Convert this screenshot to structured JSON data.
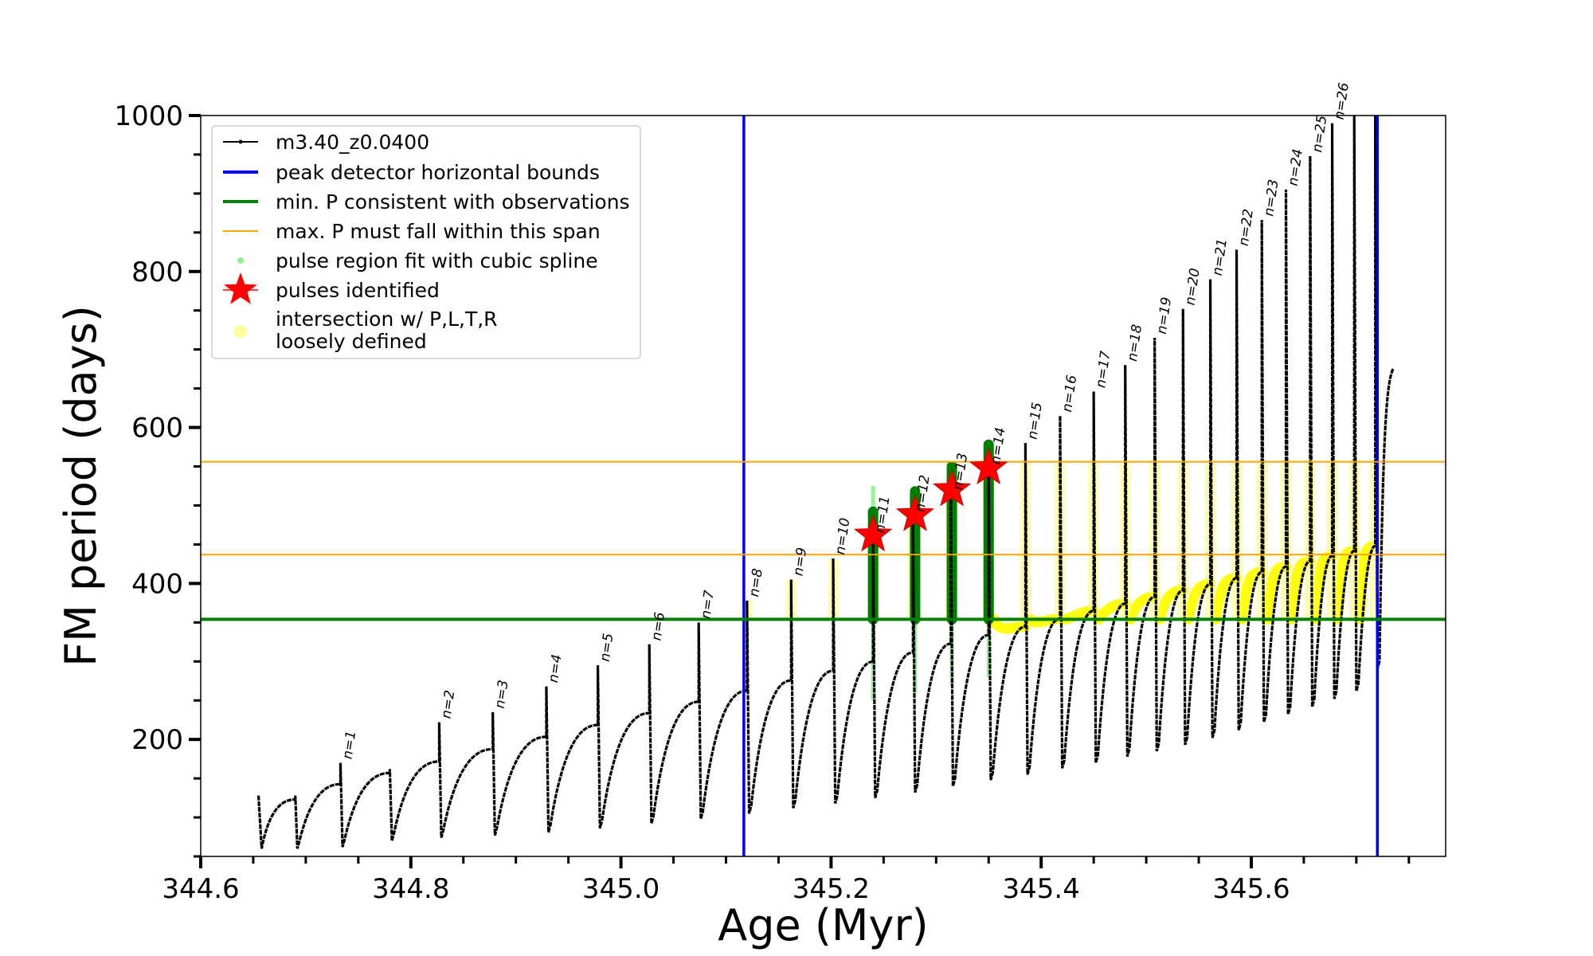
{
  "chart_data": {
    "type": "line",
    "xlabel": "Age (Myr)",
    "ylabel": "FM period (days)",
    "xlim": [
      344.6,
      345.785
    ],
    "ylim": [
      50,
      1000
    ],
    "xticks": [
      344.6,
      344.8,
      345.0,
      345.2,
      345.4,
      345.6
    ],
    "xtick_labels": [
      "344.6",
      "344.8",
      "345.0",
      "345.2",
      "345.4",
      "345.6"
    ],
    "yticks": [
      200,
      400,
      600,
      800,
      1000
    ],
    "ytick_labels": [
      "200",
      "400",
      "600",
      "800",
      "1000"
    ],
    "legend_position": "top-left",
    "legend": [
      {
        "label": "m3.40_z0.0400",
        "kind": "line-dot",
        "color": "#000000"
      },
      {
        "label": "peak detector horizontal bounds",
        "kind": "line",
        "color": "#0000ee"
      },
      {
        "label": "min. P consistent with observations",
        "kind": "line",
        "color": "#008000"
      },
      {
        "label": "max. P must fall within this span",
        "kind": "thin-line",
        "color": "#ffa500"
      },
      {
        "label": "pulse region fit with cubic spline",
        "kind": "dot",
        "color": "#90ee90"
      },
      {
        "label": "pulses identified",
        "kind": "star",
        "color": "#ff0000"
      },
      {
        "label": "intersection w/ P,L,T,R",
        "label2": "loosely defined",
        "kind": "bigdot",
        "color": "#ffff99"
      }
    ],
    "vertical_bounds": [
      345.117,
      345.72
    ],
    "min_period": 354,
    "max_period_span": [
      437,
      556
    ],
    "series": [
      {
        "name": "m3.40_z0.0400",
        "color": "#000000",
        "start_age": 344.655,
        "start_period": 128,
        "end_age": 345.735,
        "end_period": 675,
        "pulses": [
          {
            "label": "n=1",
            "age": 344.733,
            "peak": 170,
            "min": 62
          },
          {
            "label": "n=2",
            "age": 344.827,
            "peak": 222,
            "min": 74
          },
          {
            "label": "n=3",
            "age": 344.878,
            "peak": 235,
            "min": 77
          },
          {
            "label": "n=4",
            "age": 344.929,
            "peak": 268,
            "min": 81
          },
          {
            "label": "n=5",
            "age": 344.978,
            "peak": 295,
            "min": 86
          },
          {
            "label": "n=6",
            "age": 345.027,
            "peak": 322,
            "min": 92
          },
          {
            "label": "n=7",
            "age": 345.074,
            "peak": 350,
            "min": 98
          },
          {
            "label": "n=8",
            "age": 345.12,
            "peak": 378,
            "min": 105
          },
          {
            "label": "n=9",
            "age": 345.162,
            "peak": 405,
            "min": 112
          },
          {
            "label": "n=10",
            "age": 345.202,
            "peak": 432,
            "min": 118
          },
          {
            "label": "n=11",
            "age": 345.24,
            "peak": 460,
            "min": 125
          },
          {
            "label": "n=12",
            "age": 345.278,
            "peak": 487,
            "min": 132
          },
          {
            "label": "n=13",
            "age": 345.314,
            "peak": 515,
            "min": 140
          },
          {
            "label": "n=14",
            "age": 345.35,
            "peak": 548,
            "min": 148
          },
          {
            "label": "n=15",
            "age": 345.385,
            "peak": 580,
            "min": 155
          },
          {
            "label": "n=16",
            "age": 345.418,
            "peak": 615,
            "min": 163
          },
          {
            "label": "n=17",
            "age": 345.45,
            "peak": 646,
            "min": 170
          },
          {
            "label": "n=18",
            "age": 345.48,
            "peak": 680,
            "min": 178
          },
          {
            "label": "n=19",
            "age": 345.508,
            "peak": 715,
            "min": 185
          },
          {
            "label": "n=20",
            "age": 345.535,
            "peak": 752,
            "min": 193
          },
          {
            "label": "n=21",
            "age": 345.561,
            "peak": 790,
            "min": 202
          },
          {
            "label": "n=22",
            "age": 345.586,
            "peak": 828,
            "min": 212
          },
          {
            "label": "n=23",
            "age": 345.61,
            "peak": 866,
            "min": 222
          },
          {
            "label": "n=24",
            "age": 345.633,
            "peak": 905,
            "min": 232
          },
          {
            "label": "n=25",
            "age": 345.656,
            "peak": 948,
            "min": 242
          },
          {
            "label": "n=26",
            "age": 345.677,
            "peak": 990,
            "min": 252
          },
          {
            "label": "",
            "age": 345.698,
            "peak": 1000,
            "min": 262
          },
          {
            "label": "",
            "age": 345.718,
            "peak": 1000,
            "min": 290
          }
        ],
        "hidden_pulses": [
          {
            "age": 344.69,
            "peak": 128,
            "min": 60
          },
          {
            "age": 344.78,
            "peak": 162,
            "min": 70
          }
        ]
      }
    ],
    "identified_pulses": [
      {
        "age": 345.24,
        "period": 462
      },
      {
        "age": 345.28,
        "period": 488
      },
      {
        "age": 345.315,
        "period": 520
      },
      {
        "age": 345.35,
        "period": 548
      }
    ]
  }
}
